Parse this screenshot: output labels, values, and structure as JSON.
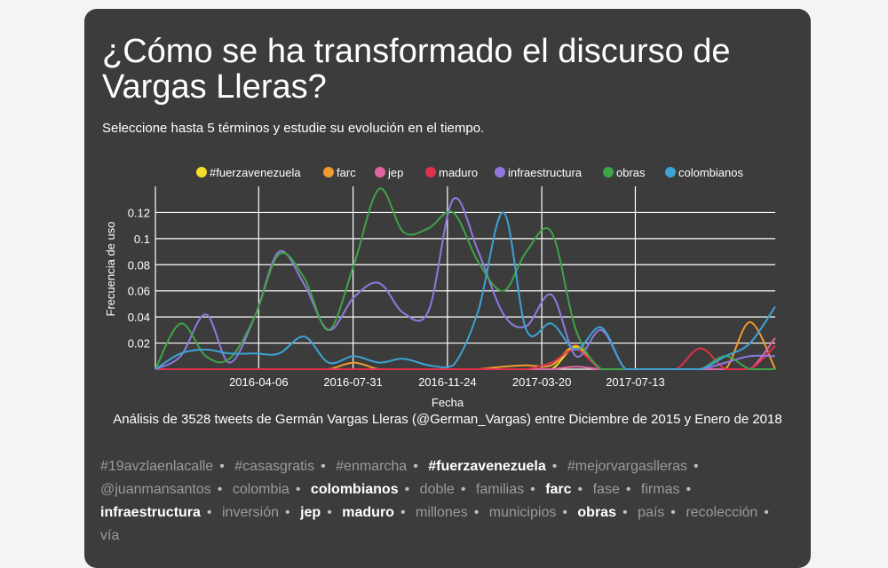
{
  "page": {
    "title": "¿Cómo se ha transformado el discurso de Vargas Lleras?",
    "subtitle": "Seleccione hasta 5 términos y estudie su evolución en el tiempo.",
    "caption": "Análisis de 3528 tweets de Germán Vargas Lleras (@German_Vargas) entre Diciembre de 2015 y Enero de 2018"
  },
  "terms": [
    {
      "label": "#19avzlaenlacalle",
      "active": false
    },
    {
      "label": "#casasgratis",
      "active": false
    },
    {
      "label": "#enmarcha",
      "active": false
    },
    {
      "label": "#fuerzavenezuela",
      "active": true
    },
    {
      "label": "#mejorvargaslleras",
      "active": false
    },
    {
      "label": "@juanmansantos",
      "active": false
    },
    {
      "label": "colombia",
      "active": false
    },
    {
      "label": "colombianos",
      "active": true
    },
    {
      "label": "doble",
      "active": false
    },
    {
      "label": "familias",
      "active": false
    },
    {
      "label": "farc",
      "active": true
    },
    {
      "label": "fase",
      "active": false
    },
    {
      "label": "firmas",
      "active": false
    },
    {
      "label": "infraestructura",
      "active": true
    },
    {
      "label": "inversión",
      "active": false
    },
    {
      "label": "jep",
      "active": true
    },
    {
      "label": "maduro",
      "active": true
    },
    {
      "label": "millones",
      "active": false
    },
    {
      "label": "municipios",
      "active": false
    },
    {
      "label": "obras",
      "active": true
    },
    {
      "label": "país",
      "active": false
    },
    {
      "label": "recolección",
      "active": false
    },
    {
      "label": "vía",
      "active": false
    }
  ],
  "chart_data": {
    "type": "line",
    "xlabel": "Fecha",
    "ylabel": "Frecuencia de uso",
    "ylim": [
      0,
      0.14
    ],
    "yticks": [
      "0.02",
      "0.04",
      "0.06",
      "0.08",
      "0.1",
      "0.12"
    ],
    "xticks": [
      "2016-04-06",
      "2016-07-31",
      "2016-11-24",
      "2017-03-20",
      "2017-07-13"
    ],
    "grid": true,
    "legend": "top",
    "x": [
      "2015-12-01",
      "2016-01-01",
      "2016-02-01",
      "2016-03-01",
      "2016-04-01",
      "2016-05-01",
      "2016-06-01",
      "2016-07-01",
      "2016-08-01",
      "2016-09-01",
      "2016-10-01",
      "2016-11-01",
      "2016-12-01",
      "2017-01-01",
      "2017-02-01",
      "2017-03-01",
      "2017-04-01",
      "2017-05-01",
      "2017-06-01",
      "2017-07-01",
      "2017-08-01",
      "2017-09-01",
      "2017-10-01",
      "2017-11-01",
      "2017-12-01",
      "2018-01-01"
    ],
    "series": [
      {
        "name": "#fuerzavenezuela",
        "color": "#f5dd2c",
        "values": [
          0,
          0,
          0,
          0,
          0,
          0,
          0,
          0,
          0,
          0,
          0,
          0,
          0,
          0,
          0,
          0,
          0,
          0.017,
          0,
          0,
          0,
          0,
          0,
          0,
          0,
          0
        ]
      },
      {
        "name": "farc",
        "color": "#f39a2c",
        "values": [
          0,
          0,
          0,
          0,
          0,
          0,
          0,
          0,
          0.005,
          0,
          0,
          0,
          0,
          0,
          0.002,
          0.003,
          0.003,
          0.018,
          0,
          0,
          0,
          0,
          0,
          0,
          0.036,
          0
        ]
      },
      {
        "name": "jep",
        "color": "#e066a3",
        "values": [
          0,
          0,
          0,
          0,
          0,
          0,
          0,
          0,
          0,
          0,
          0,
          0,
          0,
          0,
          0,
          0,
          0,
          0.002,
          0,
          0,
          0,
          0,
          0,
          0,
          0,
          0.024
        ]
      },
      {
        "name": "maduro",
        "color": "#e0304b",
        "values": [
          0,
          0,
          0,
          0,
          0,
          0,
          0,
          0,
          0,
          0,
          0,
          0,
          0,
          0,
          0,
          0,
          0.005,
          0.015,
          0,
          0,
          0,
          0,
          0.016,
          0,
          0,
          0.018
        ]
      },
      {
        "name": "infraestructura",
        "color": "#8f79e0",
        "values": [
          0,
          0.01,
          0.042,
          0.005,
          0.04,
          0.09,
          0.065,
          0.03,
          0.055,
          0.066,
          0.043,
          0.045,
          0.13,
          0.09,
          0.042,
          0.033,
          0.057,
          0.01,
          0.03,
          0,
          0,
          0,
          0,
          0.005,
          0.01,
          0.01
        ]
      },
      {
        "name": "obras",
        "color": "#3fa347",
        "values": [
          0,
          0.035,
          0.01,
          0.008,
          0.04,
          0.088,
          0.07,
          0.03,
          0.08,
          0.138,
          0.105,
          0.108,
          0.12,
          0.082,
          0.06,
          0.09,
          0.105,
          0.03,
          0,
          0,
          0,
          0,
          0,
          0.01,
          0,
          0
        ]
      },
      {
        "name": "colombianos",
        "color": "#3ca3d4",
        "values": [
          0,
          0.012,
          0.015,
          0.012,
          0.012,
          0.012,
          0.025,
          0.005,
          0.01,
          0.005,
          0.008,
          0.003,
          0.003,
          0.045,
          0.12,
          0.03,
          0.035,
          0.015,
          0.032,
          0,
          0,
          0,
          0,
          0.01,
          0.02,
          0.048
        ]
      }
    ]
  }
}
